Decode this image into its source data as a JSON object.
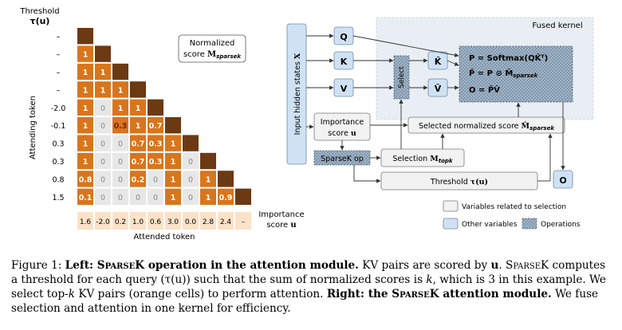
{
  "left": {
    "threshold_label_line1": "Threshold",
    "threshold_label_line2": "τ(u)",
    "row_thresholds": [
      "–",
      "–",
      "–",
      "–",
      "-2.0",
      "-0.1",
      "0.3",
      "0.3",
      "0.8",
      "1.5"
    ],
    "importance_scores": [
      "1.6",
      "-2.0",
      "0.2",
      "1.0",
      "0.6",
      "3.0",
      "0.0",
      "2.8",
      "2.4",
      "–"
    ],
    "importance_score_label_line1": "Importance",
    "importance_score_label_line2": "score u",
    "y_axis_label": "Attending token",
    "x_axis_label": "Attended token",
    "legend_line1": "Normalized",
    "legend_line2": "score M",
    "legend_subscript": "sparsek",
    "matrix": [
      [
        "D",
        "",
        "",
        "",
        "",
        "",
        "",
        "",
        "",
        ""
      ],
      [
        "1",
        "D",
        "",
        "",
        "",
        "",
        "",
        "",
        "",
        ""
      ],
      [
        "1",
        "1",
        "D",
        "",
        "",
        "",
        "",
        "",
        "",
        ""
      ],
      [
        "1",
        "1",
        "1",
        "D",
        "",
        "",
        "",
        "",
        "",
        ""
      ],
      [
        "1",
        "0",
        "1",
        "1",
        "D",
        "",
        "",
        "",
        "",
        ""
      ],
      [
        "1",
        "0",
        "0.3",
        "1",
        "0.7",
        "D",
        "",
        "",
        "",
        ""
      ],
      [
        "1",
        "0",
        "0",
        "0.7",
        "0.3",
        "1",
        "D",
        "",
        "",
        ""
      ],
      [
        "1",
        "0",
        "0",
        "0.7",
        "0.3",
        "1",
        "0",
        "D",
        "",
        ""
      ],
      [
        "0.8",
        "0",
        "0",
        "0.2",
        "0",
        "1",
        "0",
        "1",
        "D",
        ""
      ],
      [
        "0.1",
        "0",
        "0",
        "0",
        "0",
        "1",
        "0",
        "1",
        "0.9",
        "D"
      ]
    ],
    "colors": {
      "selected": "#d9751c",
      "diagonal": "#6b3a12",
      "unselected": "#e7e7e7",
      "score_strip": "#fbe2c8"
    }
  },
  "right": {
    "fused_kernel_label": "Fused kernel",
    "input_label": "Input hidden states X",
    "q_label": "Q",
    "k_label": "K",
    "v_label": "V",
    "khat_label": "K̂",
    "vhat_label": "V̂",
    "select_label": "Select",
    "eq1": "P = Softmax(QK̂ᵀ)",
    "eq2": "P̂ = P ⊙ M̂sparsek",
    "eq3": "O = P̂V̂",
    "importance_line1": "Importance",
    "importance_line2": "score u",
    "selected_norm_label": "Selected normalized score M̂",
    "selected_norm_sub": "sparsek",
    "sparsek_op_label": "SparseK op",
    "selection_label": "Selection M",
    "selection_sub": "topk",
    "threshold_label": "Threshold τ(u)",
    "o_label": "O",
    "legend": {
      "selection_vars": "Variables related to selection",
      "other_vars": "Other variables",
      "operations": "Operations"
    },
    "colors": {
      "other_var": "#cfe2f3",
      "selection_var": "#f2f2f2",
      "operation": "#8da4b8",
      "fused_bg": "#e9eef4"
    }
  },
  "caption": {
    "fig": "Figure 1: ",
    "left_head": "Left: SparseK operation in the attention module.",
    "left_text1": " KV pairs are scored by ",
    "u": "u",
    "left_text2": ". SparseK computes a threshold for each query (",
    "tau": "τ(u)",
    "left_text3": ") such that the sum of normalized scores is ",
    "k": "k",
    "left_text4": ", which is 3 in this example. We select top-",
    "k2": "k",
    "left_text5": " KV pairs (orange cells) to perform attention. ",
    "right_head": "Right: the SparseK attention module.",
    "right_text": " We fuse selection and attention in one kernel for efficiency."
  }
}
